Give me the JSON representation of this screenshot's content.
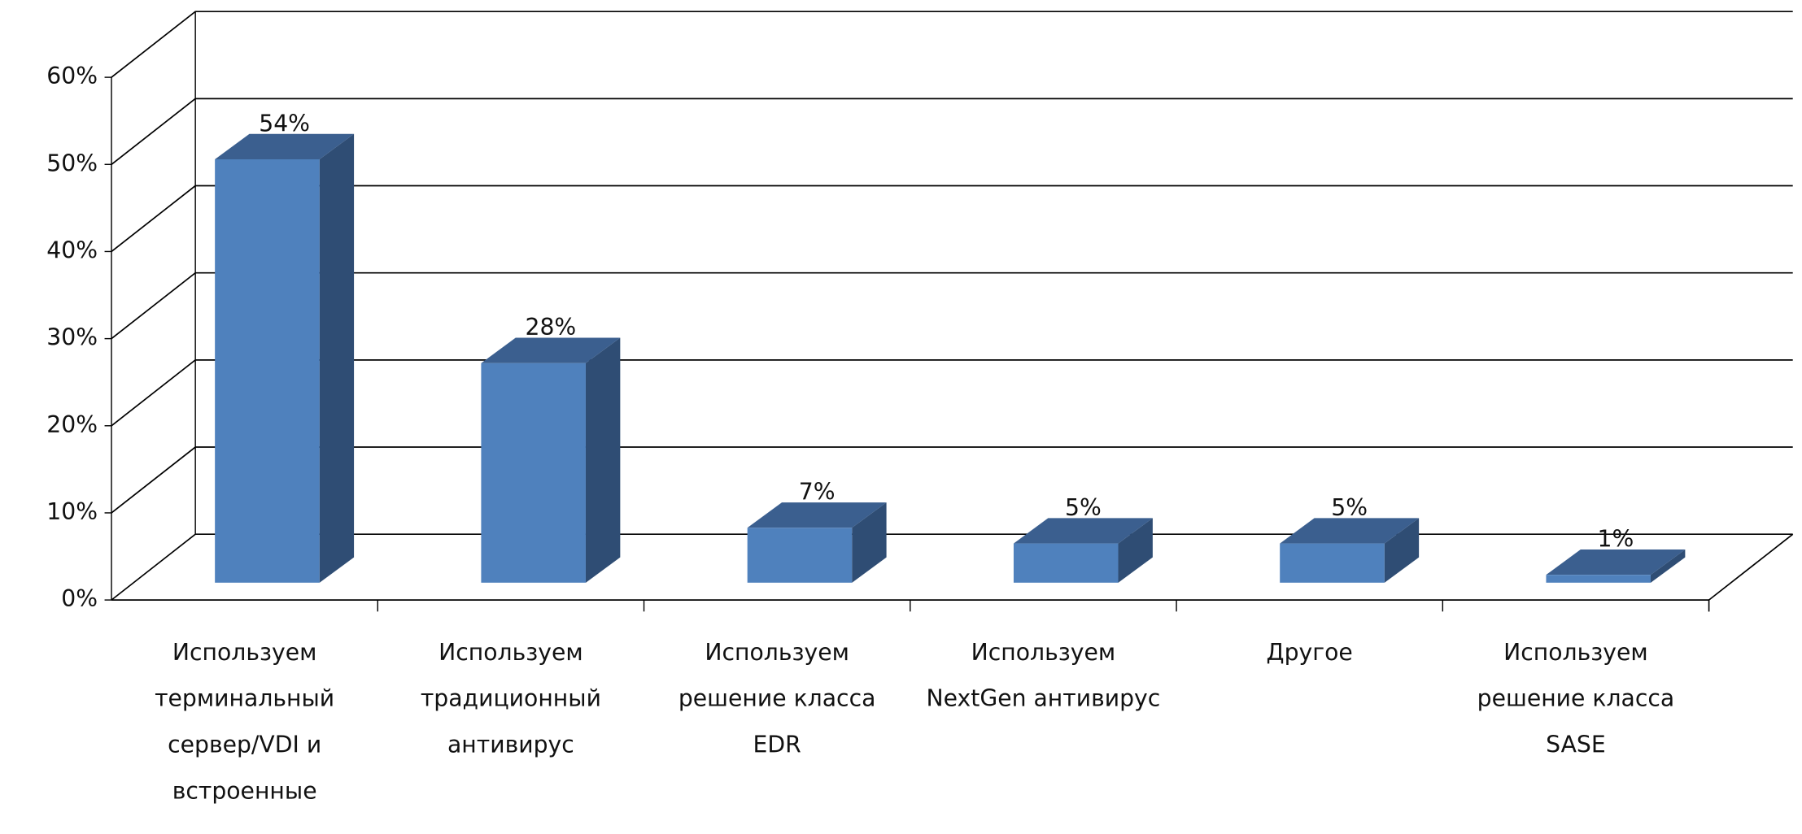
{
  "chart_data": {
    "type": "bar3d",
    "categories": [
      "Используем терминальный сервер/VDI и встроенные средства защиты",
      "Используем традиционный антивирус",
      "Используем решение класса EDR",
      "Используем NextGen антивирус",
      "Другое",
      "Используем решение класса SASE"
    ],
    "values": [
      54,
      28,
      7,
      5,
      5,
      1
    ],
    "value_labels": [
      "54%",
      "28%",
      "7%",
      "5%",
      "5%",
      "1%"
    ],
    "color": "#4f81bd",
    "ylim": [
      0,
      60
    ],
    "yticks": [
      {
        "value": 0,
        "label": "0%"
      },
      {
        "value": 10,
        "label": "10%"
      },
      {
        "value": 20,
        "label": "20%"
      },
      {
        "value": 30,
        "label": "30%"
      },
      {
        "value": 40,
        "label": "40%"
      },
      {
        "value": 50,
        "label": "50%"
      },
      {
        "value": 60,
        "label": "60%"
      }
    ],
    "grid": true
  }
}
